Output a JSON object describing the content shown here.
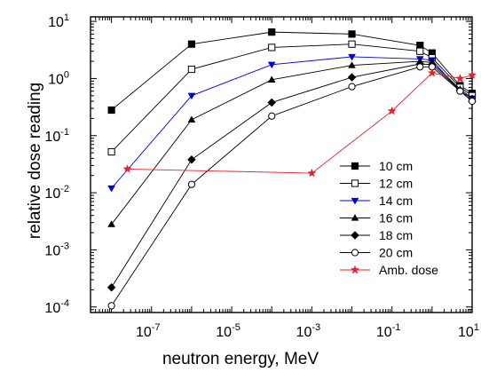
{
  "chart_data": {
    "type": "line",
    "xlabel": "neutron energy, MeV",
    "ylabel": "relative dose reading",
    "x_scale": "log",
    "y_scale": "log",
    "xlim": [
      3e-09,
      10
    ],
    "ylim": [
      8e-05,
      12
    ],
    "x_ticks": [
      {
        "value": 1e-07,
        "base": "10",
        "exp": "-7"
      },
      {
        "value": 1e-05,
        "base": "10",
        "exp": "-5"
      },
      {
        "value": 0.001,
        "base": "10",
        "exp": "-3"
      },
      {
        "value": 0.1,
        "base": "10",
        "exp": "-1"
      },
      {
        "value": 10,
        "base": "10",
        "exp": "1"
      }
    ],
    "y_ticks": [
      {
        "value": 0.0001,
        "base": "10",
        "exp": "-4"
      },
      {
        "value": 0.001,
        "base": "10",
        "exp": "-3"
      },
      {
        "value": 0.01,
        "base": "10",
        "exp": "-2"
      },
      {
        "value": 0.1,
        "base": "10",
        "exp": "-1"
      },
      {
        "value": 1,
        "base": "10",
        "exp": "0"
      },
      {
        "value": 10,
        "base": "10",
        "exp": "1"
      }
    ],
    "legend_position": "lower-right",
    "series": [
      {
        "name": "10 cm",
        "marker": "square-filled",
        "color": "#000000",
        "x": [
          1e-08,
          1e-06,
          0.0001,
          0.01,
          0.5,
          1,
          5,
          10
        ],
        "y": [
          0.28,
          4.0,
          6.5,
          6.0,
          3.8,
          2.8,
          0.75,
          0.55
        ]
      },
      {
        "name": "12 cm",
        "marker": "square-open",
        "color": "#000000",
        "x": [
          1e-08,
          1e-06,
          0.0001,
          0.01,
          0.5,
          1,
          5,
          10
        ],
        "y": [
          0.052,
          1.45,
          3.5,
          4.0,
          3.0,
          2.3,
          0.7,
          0.5
        ]
      },
      {
        "name": "14 cm",
        "marker": "triangle-down-filled",
        "color": "#0000dd",
        "x": [
          1e-08,
          1e-06,
          0.0001,
          0.01,
          0.5,
          1,
          5,
          10
        ],
        "y": [
          0.012,
          0.5,
          1.75,
          2.4,
          2.2,
          2.1,
          0.6,
          0.45
        ]
      },
      {
        "name": "16 cm",
        "marker": "triangle-up-filled",
        "color": "#000000",
        "x": [
          1e-08,
          1e-06,
          0.0001,
          0.01,
          0.5,
          1,
          5,
          10
        ],
        "y": [
          0.0028,
          0.19,
          0.95,
          1.7,
          2.0,
          1.9,
          0.65,
          0.45
        ]
      },
      {
        "name": "18 cm",
        "marker": "diamond-filled",
        "color": "#000000",
        "x": [
          1e-08,
          1e-06,
          0.0001,
          0.01,
          0.5,
          1,
          5,
          10
        ],
        "y": [
          0.00022,
          0.038,
          0.38,
          1.05,
          1.8,
          1.75,
          0.62,
          0.4
        ]
      },
      {
        "name": "20 cm",
        "marker": "circle-open",
        "color": "#000000",
        "x": [
          1e-08,
          1e-06,
          0.0001,
          0.01,
          0.5,
          1,
          5,
          10
        ],
        "y": [
          0.000105,
          0.014,
          0.22,
          0.72,
          1.6,
          1.6,
          0.6,
          0.4
        ]
      },
      {
        "name": "Amb. dose",
        "marker": "star",
        "color": "#e8202a",
        "x": [
          2.5e-08,
          0.001,
          0.1,
          1,
          5,
          10
        ],
        "y": [
          0.026,
          0.022,
          0.27,
          1.25,
          1.0,
          1.15
        ]
      }
    ]
  }
}
